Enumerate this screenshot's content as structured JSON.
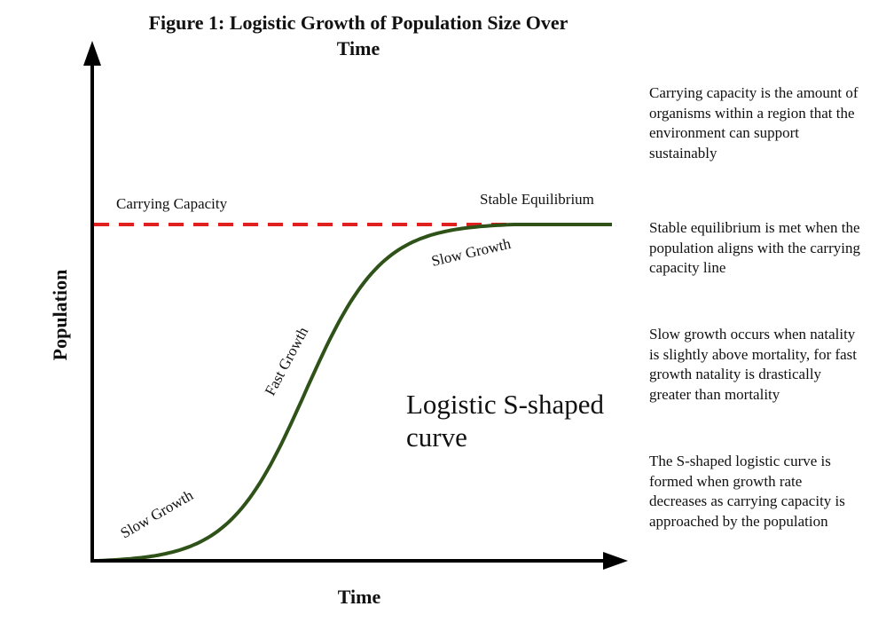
{
  "title_line1": "Figure 1: Logistic Growth of Population Size  Over",
  "title_line2": "Time",
  "y_axis_label": "Population",
  "x_axis_label": "Time",
  "labels": {
    "carrying_capacity": "Carrying Capacity",
    "stable_equilibrium": "Stable Equilibrium",
    "slow_growth_top": "Slow Growth",
    "fast_growth": "Fast Growth",
    "slow_growth_bottom": "Slow Growth",
    "curve_line1": "Logistic S-shaped",
    "curve_line2": "curve"
  },
  "notes": [
    "Carrying capacity is the amount of organisms within a region that the environment can support sustainably",
    "Stable equilibrium is met when the population aligns with the carrying capacity line",
    "Slow growth occurs when natality is slightly above mortality, for fast growth natality is drastically greater than mortality",
    "The S-shaped logistic curve is formed when growth rate decreases as carrying capacity is approached by the population"
  ],
  "colors": {
    "curve": "#2f5219",
    "carrying_capacity_line": "#e0201e",
    "axes": "#000000"
  },
  "chart_data": {
    "type": "line",
    "description_free": true,
    "carrying_capacity": 1.0,
    "midpoint_time": 0.5,
    "growth_rate": 11
  }
}
